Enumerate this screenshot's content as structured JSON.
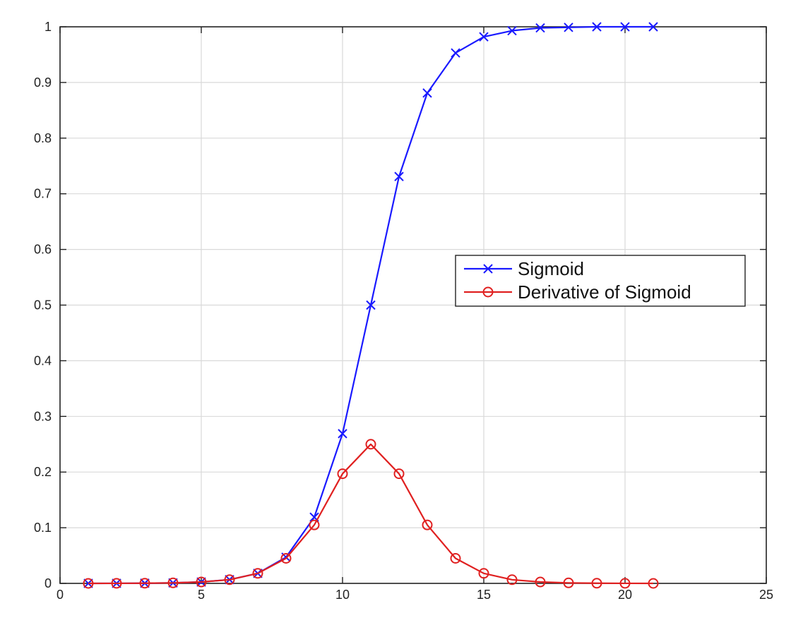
{
  "chart_data": {
    "type": "line",
    "title": "",
    "xlabel": "",
    "ylabel": "",
    "xlim": [
      0,
      25
    ],
    "ylim": [
      0,
      1
    ],
    "xticks": [
      0,
      5,
      10,
      15,
      20,
      25
    ],
    "yticks": [
      0,
      0.1,
      0.2,
      0.3,
      0.4,
      0.5,
      0.6,
      0.7,
      0.8,
      0.9,
      1
    ],
    "grid": true,
    "legend_position": "center-right",
    "x": [
      1,
      2,
      3,
      4,
      5,
      6,
      7,
      8,
      9,
      10,
      11,
      12,
      13,
      14,
      15,
      16,
      17,
      18,
      19,
      20,
      21
    ],
    "series": [
      {
        "name": "Sigmoid",
        "color": "#1a1aff",
        "marker": "x",
        "values": [
          0.0,
          0.0001,
          0.0003,
          0.0009,
          0.0025,
          0.0067,
          0.018,
          0.047,
          0.119,
          0.269,
          0.5,
          0.731,
          0.881,
          0.953,
          0.982,
          0.993,
          0.998,
          0.999,
          1.0,
          1.0,
          1.0
        ]
      },
      {
        "name": "Derivative of Sigmoid",
        "color": "#e02020",
        "marker": "o",
        "values": [
          0.0,
          0.0001,
          0.0003,
          0.0009,
          0.0025,
          0.0066,
          0.018,
          0.045,
          0.105,
          0.197,
          0.25,
          0.197,
          0.105,
          0.045,
          0.018,
          0.0066,
          0.0025,
          0.0009,
          0.0003,
          0.0001,
          0.0
        ]
      }
    ]
  }
}
